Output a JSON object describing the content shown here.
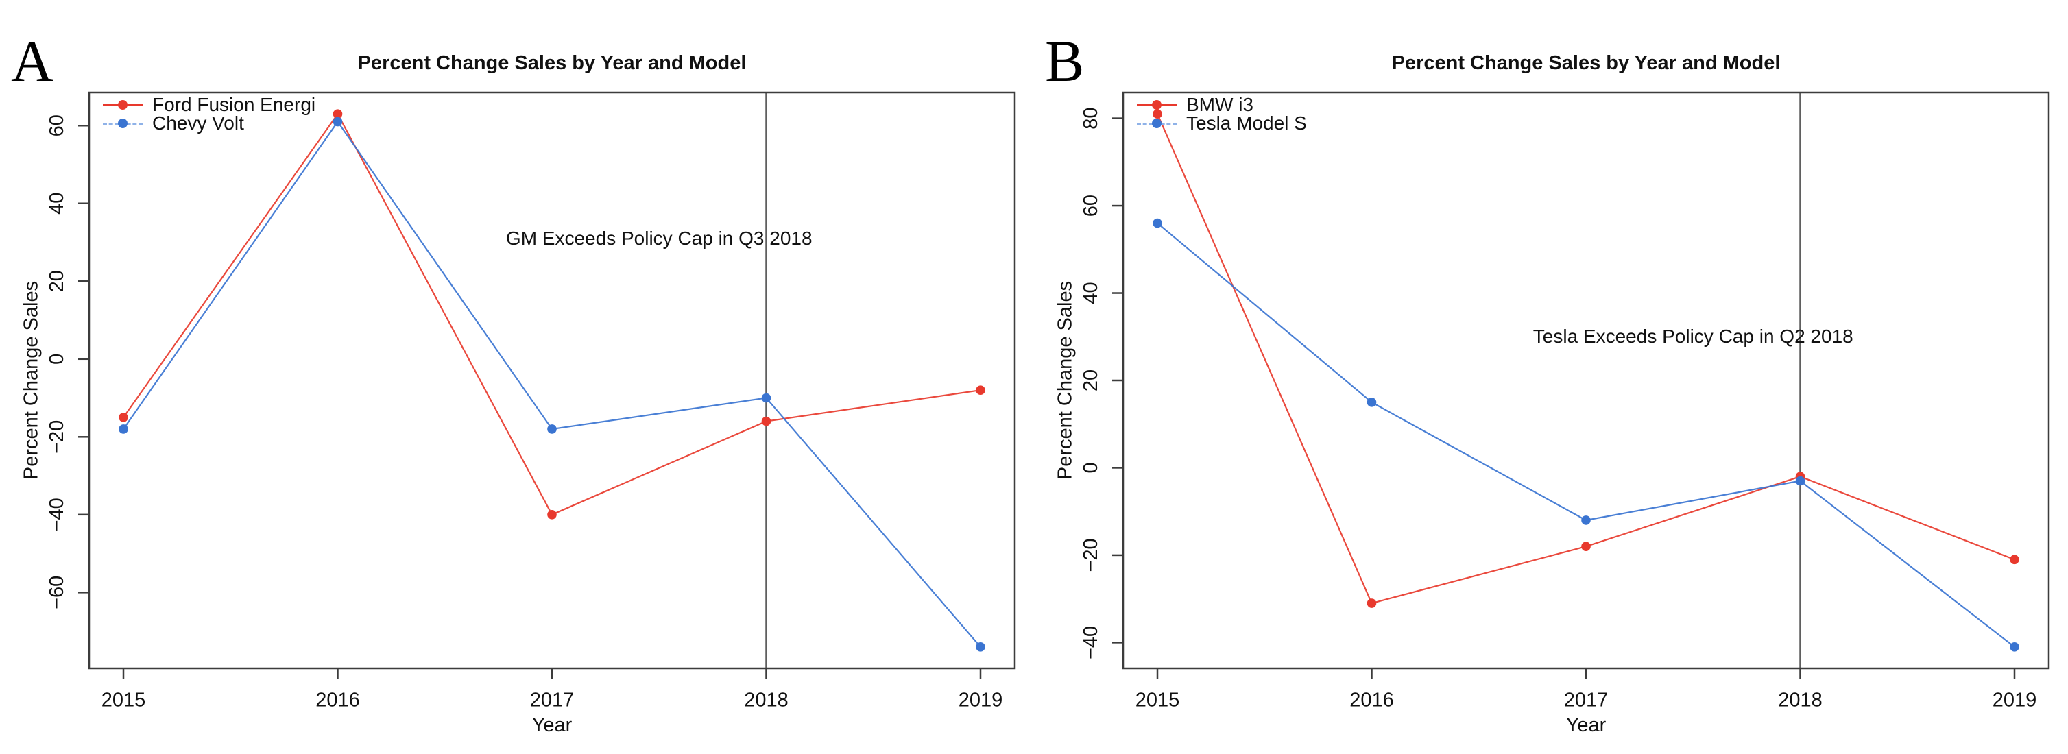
{
  "chart_data": [
    {
      "type": "line",
      "letter": "A",
      "title": "Percent Change Sales by Year and Model",
      "xlabel": "Year",
      "ylabel": "Percent Change Sales",
      "x": [
        2015,
        2016,
        2017,
        2018,
        2019
      ],
      "xtick_labels": [
        "2015",
        "2016",
        "2017",
        "2018",
        "2019"
      ],
      "yticks": [
        60,
        40,
        20,
        0,
        -20,
        -40,
        -60
      ],
      "xlim": [
        2014.84,
        2019.16
      ],
      "ylim": [
        -79.5,
        68.5
      ],
      "grid": false,
      "legend_position": "top-left",
      "vline_x": 2018,
      "annotation": {
        "text": "GM Exceeds Policy Cap in Q3 2018",
        "x": 2017.5,
        "y": 31
      },
      "series": [
        {
          "name": "Ford Fusion Energi",
          "color": "#e8392d",
          "line_style": "solid",
          "marker": "circle",
          "values": [
            -15,
            63,
            -40,
            -16,
            -8
          ]
        },
        {
          "name": "Chevy Volt",
          "color": "#3a74d1",
          "line_style": "solid",
          "marker": "circle",
          "values": [
            -18,
            61,
            -18,
            -10,
            -74
          ]
        }
      ]
    },
    {
      "type": "line",
      "letter": "B",
      "title": "Percent Change Sales by Year and Model",
      "xlabel": "Year",
      "ylabel": "Percent Change Sales",
      "x": [
        2015,
        2016,
        2017,
        2018,
        2019
      ],
      "xtick_labels": [
        "2015",
        "2016",
        "2017",
        "2018",
        "2019"
      ],
      "yticks": [
        80,
        60,
        40,
        20,
        0,
        -20,
        -40
      ],
      "xlim": [
        2014.84,
        2019.16
      ],
      "ylim": [
        -45.9,
        85.9
      ],
      "grid": false,
      "legend_position": "top-left",
      "vline_x": 2018,
      "annotation": {
        "text": "Tesla Exceeds Policy Cap in Q2 2018",
        "x": 2017.5,
        "y": 30
      },
      "series": [
        {
          "name": "BMW i3",
          "color": "#e8392d",
          "line_style": "solid",
          "marker": "circle",
          "values": [
            81,
            -31,
            -18,
            -2,
            -21
          ]
        },
        {
          "name": "Tesla Model S",
          "color": "#3a74d1",
          "line_style": "solid",
          "marker": "circle",
          "values": [
            56,
            15,
            -12,
            -3,
            -41
          ]
        }
      ]
    }
  ],
  "colors": {
    "axis": "#3c3c3c",
    "vline": "#5f5f5f",
    "text": "#111111",
    "background": "#ffffff",
    "series_red": "#e8392d",
    "series_blue": "#3a74d1"
  }
}
